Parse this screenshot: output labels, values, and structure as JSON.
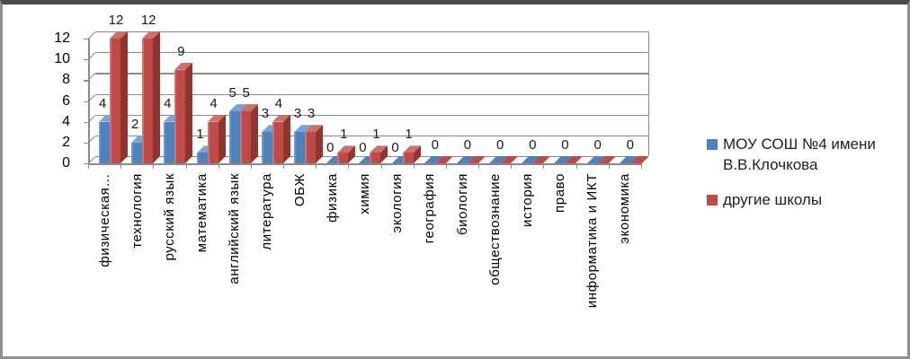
{
  "chart_data": {
    "type": "bar",
    "style": "3d-clustered-column",
    "title": "",
    "categories": [
      "физическая…",
      "технология",
      "русский язык",
      "математика",
      "английский язык",
      "литература",
      "ОБЖ",
      "физика",
      "химия",
      "экология",
      "география",
      "биология",
      "обществознание",
      "история",
      "право",
      "информатика и ИКТ",
      "экономика"
    ],
    "series": [
      {
        "name": "МОУ СОШ №4 имени В.В.Клочкова",
        "color": "#4f81bd",
        "color_top": "#7ca2d3",
        "color_side": "#2f5c94",
        "color_edge": "#6b97cc",
        "values": [
          4,
          2,
          4,
          1,
          5,
          3,
          3,
          0,
          0,
          0,
          0,
          0,
          0,
          0,
          0,
          0,
          0
        ]
      },
      {
        "name": "другие школы",
        "color": "#bf4b48",
        "color_top": "#cd6f6c",
        "color_side": "#8e3532",
        "color_edge": "#cc7370",
        "values": [
          12,
          12,
          9,
          4,
          5,
          4,
          3,
          1,
          1,
          1,
          0,
          0,
          0,
          0,
          0,
          0,
          0
        ]
      }
    ],
    "ylim": [
      0,
      12
    ],
    "yticks": [
      0,
      2,
      4,
      6,
      8,
      10,
      12
    ],
    "grid": true,
    "data_labels": true,
    "legend_position": "right"
  },
  "legend": {
    "items": [
      {
        "label": "МОУ СОШ №4 имени В.В.Клочкова",
        "color": "#4f81bd"
      },
      {
        "label": "другие школы",
        "color": "#bf4b48"
      }
    ]
  },
  "colors": {
    "axis": "#8a8a8a",
    "gridline": "#8a8a8a",
    "label_text": "#000000",
    "frame_border": "#8f8f8f",
    "frame_top": "#4a4a4a",
    "background": "#ffffff"
  }
}
